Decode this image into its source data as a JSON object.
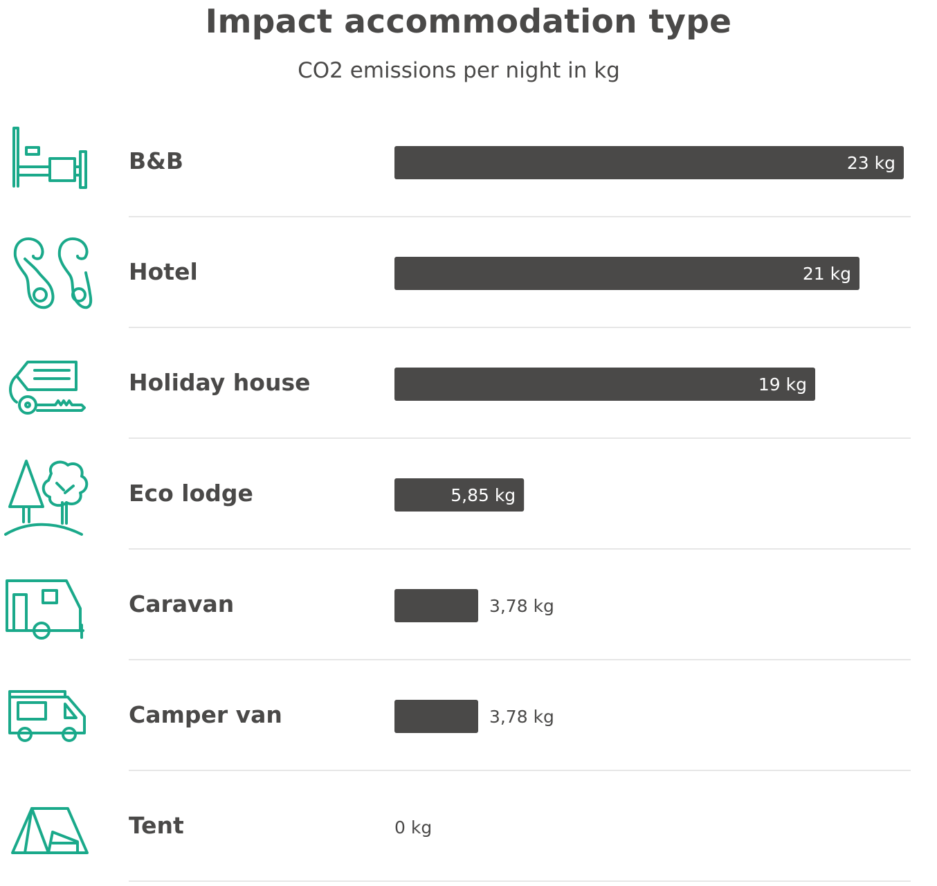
{
  "chart_data": {
    "type": "bar",
    "orientation": "horizontal",
    "title": "Impact accommodation type",
    "subtitle": "CO2 emissions per night in kg",
    "categories": [
      "B&B",
      "Hotel",
      "Holiday house",
      "Eco lodge",
      "Caravan",
      "Camper van",
      "Tent"
    ],
    "values": [
      23,
      21,
      19,
      5.85,
      3.78,
      3.78,
      0
    ],
    "value_labels": [
      "23 kg",
      "21 kg",
      "19 kg",
      "5,85 kg",
      "3,78 kg",
      "3,78 kg",
      "0 kg"
    ],
    "icons": [
      "bed-icon",
      "door-hanger-icon",
      "key-tag-icon",
      "trees-icon",
      "caravan-icon",
      "camper-van-icon",
      "tent-icon"
    ],
    "xlim": [
      0,
      23
    ],
    "grid": false,
    "legend": "none"
  },
  "colors": {
    "bar": "#4a4948",
    "icon": "#1aa98a",
    "text": "#4a4948",
    "divider": "#e6e6e6"
  }
}
